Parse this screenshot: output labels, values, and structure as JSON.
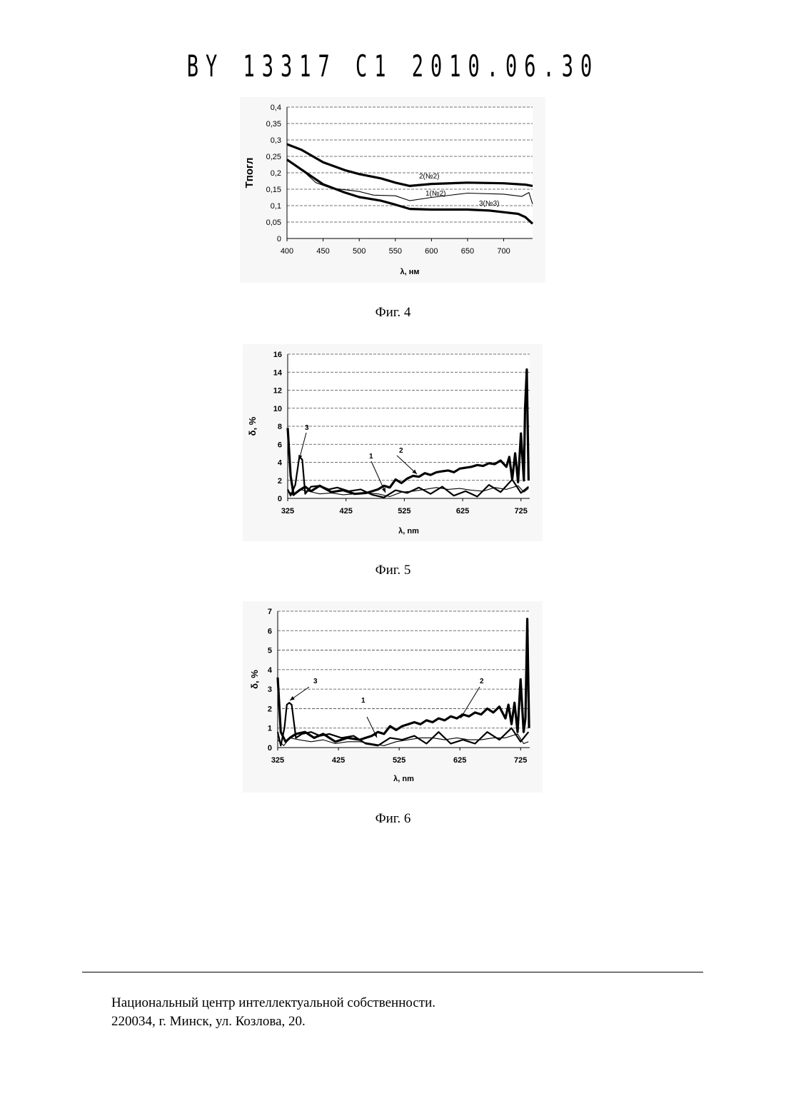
{
  "header": {
    "doc_code": "BY 13317 C1 2010.06.30"
  },
  "figures": [
    {
      "caption": "Фиг. 4"
    },
    {
      "caption": "Фиг. 5"
    },
    {
      "caption": "Фиг. 6"
    }
  ],
  "footer": {
    "line1": "Национальный центр интеллектуальной собственности.",
    "line2": "220034, г. Минск, ул. Козлова, 20."
  },
  "chart_data": [
    {
      "type": "line",
      "ylabel": "Tпогл",
      "xlabel": "λ, нм",
      "xlim": [
        400,
        740
      ],
      "ylim": [
        0,
        0.4
      ],
      "x_ticks": [
        "400",
        "450",
        "500",
        "550",
        "600",
        "650",
        "700"
      ],
      "y_ticks": [
        "0",
        "0,05",
        "0,1",
        "0,15",
        "0,2",
        "0,25",
        "0,3",
        "0,35",
        "0,4"
      ],
      "grid": true,
      "series": [
        {
          "name": "2(№2)",
          "x": [
            400,
            420,
            450,
            480,
            500,
            530,
            550,
            570,
            600,
            650,
            700,
            730,
            740
          ],
          "values": [
            0.287,
            0.27,
            0.232,
            0.208,
            0.196,
            0.183,
            0.17,
            0.16,
            0.166,
            0.17,
            0.168,
            0.164,
            0.16
          ]
        },
        {
          "name": "1(№2)",
          "x": [
            400,
            420,
            440,
            460,
            500,
            520,
            550,
            570,
            600,
            650,
            700,
            725,
            735,
            740
          ],
          "values": [
            0.24,
            0.21,
            0.17,
            0.154,
            0.143,
            0.132,
            0.13,
            0.115,
            0.125,
            0.138,
            0.135,
            0.128,
            0.14,
            0.105
          ]
        },
        {
          "name": "3(№3)",
          "x": [
            400,
            420,
            450,
            480,
            500,
            530,
            550,
            570,
            600,
            650,
            680,
            700,
            720,
            730,
            740
          ],
          "values": [
            0.24,
            0.21,
            0.165,
            0.14,
            0.126,
            0.115,
            0.103,
            0.09,
            0.088,
            0.088,
            0.085,
            0.08,
            0.075,
            0.065,
            0.045
          ]
        }
      ]
    },
    {
      "type": "line",
      "ylabel": "δ, %",
      "xlabel": "λ, nm",
      "xlim": [
        325,
        740
      ],
      "ylim": [
        0,
        16
      ],
      "x_ticks": [
        "325",
        "425",
        "525",
        "625",
        "725"
      ],
      "y_ticks": [
        "0",
        "2",
        "4",
        "6",
        "8",
        "10",
        "12",
        "14",
        "16"
      ],
      "grid": true,
      "series": [
        {
          "name": "2",
          "x": [
            325,
            330,
            335,
            345,
            355,
            365,
            380,
            400,
            420,
            440,
            460,
            480,
            490,
            500,
            510,
            520,
            530,
            540,
            550,
            560,
            570,
            580,
            590,
            600,
            610,
            620,
            630,
            640,
            650,
            660,
            670,
            680,
            690,
            700,
            705,
            710,
            715,
            720,
            725,
            730,
            732,
            735,
            738
          ],
          "values": [
            7.8,
            2.5,
            0.4,
            0.9,
            1.3,
            0.8,
            1.4,
            0.7,
            0.9,
            0.5,
            0.6,
            1.0,
            1.4,
            1.2,
            2.1,
            1.7,
            2.2,
            2.5,
            2.4,
            2.8,
            2.6,
            2.9,
            3.0,
            3.1,
            2.9,
            3.3,
            3.4,
            3.5,
            3.7,
            3.6,
            3.9,
            3.8,
            4.2,
            3.5,
            4.6,
            2.1,
            5.0,
            1.8,
            7.2,
            2.0,
            10.0,
            14.3,
            2.0
          ]
        },
        {
          "name": "1",
          "x": [
            325,
            335,
            345,
            360,
            380,
            400,
            420,
            440,
            460,
            480,
            500,
            520,
            540,
            560,
            580,
            600,
            620,
            640,
            660,
            680,
            700,
            720,
            730,
            738
          ],
          "values": [
            0.9,
            0.3,
            1.0,
            0.8,
            0.5,
            0.6,
            0.4,
            0.5,
            0.6,
            0.5,
            0.2,
            0.7,
            0.8,
            1.0,
            1.2,
            1.0,
            1.1,
            0.9,
            0.8,
            1.2,
            1.0,
            1.4,
            0.7,
            1.1
          ]
        },
        {
          "name": "3",
          "x": [
            325,
            330,
            338,
            345,
            350,
            355,
            365,
            380,
            395,
            410,
            430,
            450,
            470,
            490,
            510,
            530,
            550,
            570,
            590,
            610,
            630,
            650,
            670,
            690,
            710,
            725,
            738
          ],
          "values": [
            1.0,
            0.3,
            1.5,
            4.6,
            4.3,
            0.5,
            1.3,
            1.4,
            1.0,
            1.2,
            0.8,
            1.0,
            0.4,
            0.1,
            0.9,
            0.6,
            1.2,
            0.5,
            1.3,
            0.3,
            0.8,
            0.2,
            1.5,
            0.7,
            2.1,
            0.6,
            1.3
          ]
        }
      ]
    },
    {
      "type": "line",
      "ylabel": "δ, %",
      "xlabel": "λ, nm",
      "xlim": [
        325,
        740
      ],
      "ylim": [
        0,
        7
      ],
      "x_ticks": [
        "325",
        "425",
        "525",
        "625",
        "725"
      ],
      "y_ticks": [
        "0",
        "1",
        "2",
        "3",
        "4",
        "5",
        "6",
        "7"
      ],
      "grid": true,
      "series": [
        {
          "name": "2",
          "x": [
            325,
            330,
            338,
            345,
            355,
            370,
            385,
            400,
            420,
            440,
            460,
            480,
            490,
            500,
            510,
            520,
            530,
            540,
            550,
            560,
            570,
            580,
            590,
            600,
            610,
            620,
            630,
            640,
            650,
            660,
            670,
            680,
            690,
            700,
            705,
            710,
            715,
            720,
            725,
            730,
            733,
            736,
            739
          ],
          "values": [
            3.6,
            0.8,
            0.3,
            0.5,
            0.7,
            0.8,
            0.5,
            0.7,
            0.3,
            0.5,
            0.4,
            0.6,
            0.8,
            0.7,
            1.1,
            0.9,
            1.1,
            1.2,
            1.3,
            1.2,
            1.4,
            1.3,
            1.5,
            1.4,
            1.6,
            1.5,
            1.7,
            1.6,
            1.8,
            1.7,
            2.0,
            1.8,
            2.1,
            1.5,
            2.2,
            1.2,
            2.3,
            0.8,
            3.5,
            0.8,
            1.5,
            6.6,
            1.0
          ]
        },
        {
          "name": "1",
          "x": [
            325,
            335,
            345,
            360,
            380,
            400,
            420,
            440,
            460,
            480,
            500,
            520,
            540,
            560,
            580,
            600,
            620,
            640,
            660,
            680,
            700,
            720,
            730,
            738
          ],
          "values": [
            0.4,
            0.1,
            0.5,
            0.4,
            0.3,
            0.4,
            0.2,
            0.3,
            0.3,
            0.2,
            0.1,
            0.3,
            0.4,
            0.5,
            0.5,
            0.4,
            0.5,
            0.4,
            0.4,
            0.5,
            0.5,
            0.7,
            0.2,
            0.3
          ]
        },
        {
          "name": "3",
          "x": [
            325,
            330,
            336,
            340,
            344,
            348,
            355,
            365,
            380,
            395,
            410,
            430,
            450,
            470,
            490,
            510,
            530,
            550,
            570,
            590,
            610,
            630,
            650,
            670,
            690,
            710,
            725,
            738
          ],
          "values": [
            0.8,
            0.1,
            1.0,
            2.2,
            2.3,
            2.2,
            0.5,
            0.7,
            0.8,
            0.6,
            0.7,
            0.5,
            0.6,
            0.2,
            0.1,
            0.5,
            0.4,
            0.6,
            0.2,
            0.8,
            0.2,
            0.4,
            0.2,
            0.8,
            0.4,
            1.0,
            0.3,
            0.8
          ]
        }
      ]
    }
  ]
}
